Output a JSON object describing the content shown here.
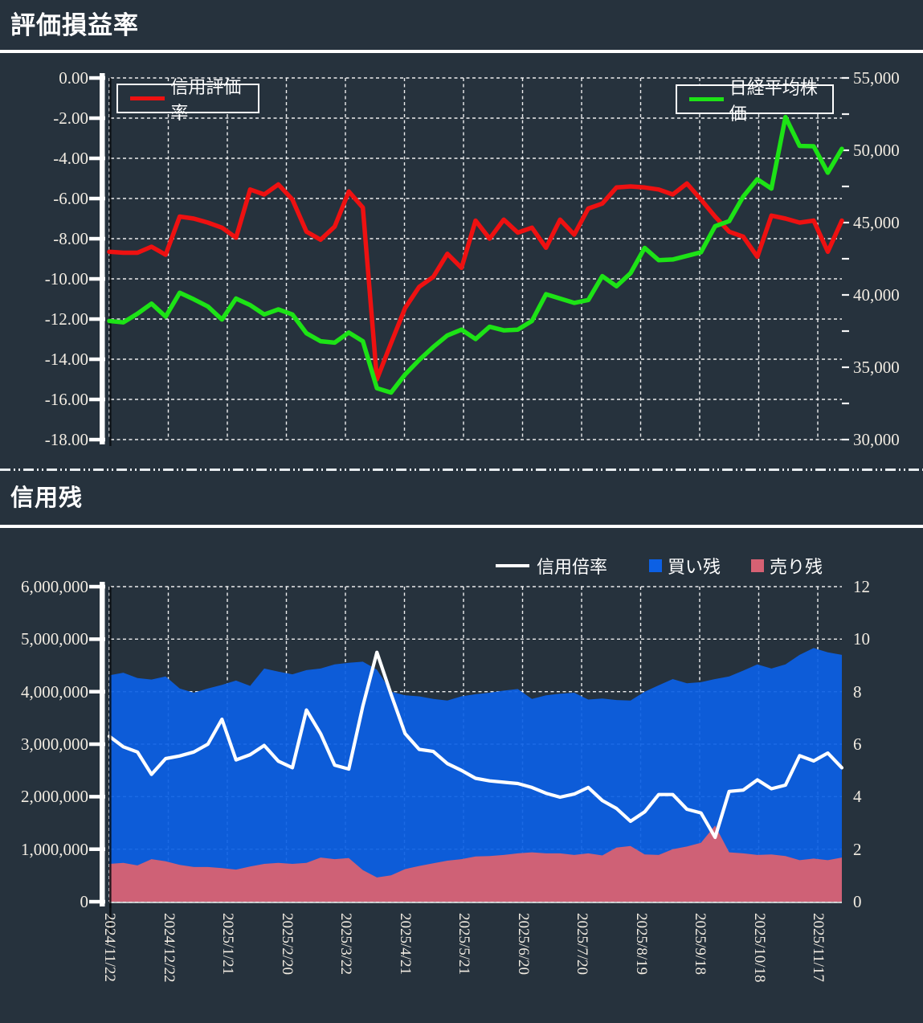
{
  "colors": {
    "background": "#26323d",
    "grid": "#ffffff",
    "red_line": "#ee1111",
    "green_line": "#1de316",
    "blue_area": "#0c60e4",
    "pink_area": "#d66173",
    "white_line": "#ffffff",
    "axis_text": "#f2ece2"
  },
  "section1": {
    "title": "評価損益率"
  },
  "section2": {
    "title": "信用残"
  },
  "chart_data": [
    {
      "type": "line",
      "title": "評価損益率",
      "legend_position": "top-inside",
      "grid": true,
      "x_labels": [
        "2024/11/22",
        "2024/12/22",
        "2025/1/21",
        "2025/2/20",
        "2025/3/22",
        "2025/4/21",
        "2025/5/21",
        "2025/6/20",
        "2025/7/20",
        "2025/8/19",
        "2025/9/18",
        "2025/10/18",
        "2025/11/17"
      ],
      "left_axis": {
        "min": -18,
        "max": 0,
        "step": 2,
        "ticks": [
          "0.00",
          "-2.00",
          "-4.00",
          "-6.00",
          "-8.00",
          "-10.00",
          "-12.00",
          "-14.00",
          "-16.00",
          "-18.00"
        ]
      },
      "right_axis": {
        "min": 30000,
        "max": 55000,
        "step": 5000,
        "ticks": [
          "55,000",
          "50,000",
          "45,000",
          "40,000",
          "35,000",
          "30,000"
        ]
      },
      "series": [
        {
          "name": "信用評価率",
          "axis": "left",
          "color": "#ee1111",
          "values": [
            -8.65,
            -8.7,
            -8.7,
            -8.4,
            -8.8,
            -6.9,
            -7.0,
            -7.2,
            -7.45,
            -7.95,
            -5.55,
            -5.8,
            -5.3,
            -6.05,
            -7.65,
            -8.05,
            -7.4,
            -5.65,
            -6.45,
            -15.0,
            -13.2,
            -11.45,
            -10.4,
            -9.9,
            -8.75,
            -9.45,
            -7.1,
            -8.0,
            -7.05,
            -7.7,
            -7.45,
            -8.45,
            -7.05,
            -7.8,
            -6.5,
            -6.25,
            -5.45,
            -5.4,
            -5.45,
            -5.55,
            -5.8,
            -5.25,
            -6.05,
            -6.9,
            -7.65,
            -7.9,
            -8.9,
            -6.85,
            -7.0,
            -7.2,
            -7.1,
            -8.65,
            -7.1
          ]
        },
        {
          "name": "日経平均株価",
          "axis": "right",
          "color": "#1de316",
          "values": [
            38200,
            38100,
            38700,
            39400,
            38500,
            40150,
            39700,
            39200,
            38300,
            39750,
            39300,
            38650,
            39000,
            38650,
            37350,
            36800,
            36700,
            37400,
            36800,
            33550,
            33250,
            34500,
            35500,
            36400,
            37200,
            37600,
            36950,
            37800,
            37550,
            37600,
            38200,
            40050,
            39750,
            39450,
            39650,
            41300,
            40600,
            41500,
            43250,
            42400,
            42450,
            42700,
            42950,
            44750,
            45100,
            46800,
            48000,
            47350,
            52300,
            50300,
            50280,
            48450,
            50100
          ]
        }
      ]
    },
    {
      "type": "area+line",
      "title": "信用残",
      "legend_position": "top",
      "grid": true,
      "x_labels": [
        "2024/11/22",
        "2024/12/22",
        "2025/1/21",
        "2025/2/20",
        "2025/3/22",
        "2025/4/21",
        "2025/5/21",
        "2025/6/20",
        "2025/7/20",
        "2025/8/19",
        "2025/9/18",
        "2025/10/18",
        "2025/11/17"
      ],
      "left_axis": {
        "min": 0,
        "max": 6000000,
        "step": 1000000,
        "ticks": [
          "6,000,000",
          "5,000,000",
          "4,000,000",
          "3,000,000",
          "2,000,000",
          "1,000,000",
          "0"
        ]
      },
      "right_axis": {
        "min": 0,
        "max": 12,
        "step": 2,
        "ticks": [
          "12",
          "10",
          "8",
          "6",
          "4",
          "2",
          "0"
        ]
      },
      "series": [
        {
          "name": "買い残",
          "type": "area",
          "axis": "left",
          "color": "#0c60e4",
          "values": [
            4310000,
            4360000,
            4260000,
            4230000,
            4290000,
            4060000,
            3980000,
            4060000,
            4130000,
            4210000,
            4110000,
            4440000,
            4380000,
            4330000,
            4410000,
            4440000,
            4520000,
            4550000,
            4570000,
            4420000,
            4000000,
            3930000,
            3910000,
            3860000,
            3830000,
            3910000,
            3950000,
            3980000,
            4020000,
            4050000,
            3860000,
            3930000,
            3960000,
            3980000,
            3850000,
            3870000,
            3840000,
            3830000,
            4000000,
            4120000,
            4240000,
            4160000,
            4180000,
            4240000,
            4290000,
            4400000,
            4520000,
            4440000,
            4520000,
            4700000,
            4830000,
            4750000,
            4700000
          ]
        },
        {
          "name": "売り残",
          "type": "area",
          "axis": "left",
          "color": "#d66173",
          "values": [
            720000,
            740000,
            690000,
            810000,
            770000,
            700000,
            660000,
            660000,
            640000,
            610000,
            670000,
            720000,
            740000,
            720000,
            740000,
            840000,
            810000,
            830000,
            600000,
            460000,
            500000,
            620000,
            680000,
            730000,
            780000,
            810000,
            860000,
            870000,
            890000,
            920000,
            940000,
            920000,
            920000,
            890000,
            920000,
            880000,
            1030000,
            1060000,
            900000,
            890000,
            1000000,
            1050000,
            1120000,
            1450000,
            940000,
            920000,
            890000,
            900000,
            870000,
            790000,
            820000,
            790000,
            840000
          ]
        },
        {
          "name": "信用倍率",
          "type": "line",
          "axis": "right",
          "color": "#ffffff",
          "values": [
            6.3,
            5.9,
            5.7,
            4.85,
            5.45,
            5.55,
            5.7,
            6.0,
            6.95,
            5.4,
            5.6,
            5.95,
            5.35,
            5.1,
            7.3,
            6.4,
            5.2,
            5.05,
            7.45,
            9.5,
            7.9,
            6.4,
            5.8,
            5.72,
            5.26,
            5.0,
            4.7,
            4.6,
            4.55,
            4.5,
            4.35,
            4.13,
            3.98,
            4.1,
            4.35,
            3.85,
            3.55,
            3.06,
            3.42,
            4.08,
            4.08,
            3.52,
            3.38,
            2.45,
            4.2,
            4.25,
            4.64,
            4.3,
            4.44,
            5.56,
            5.36,
            5.66,
            5.1
          ]
        }
      ]
    }
  ]
}
